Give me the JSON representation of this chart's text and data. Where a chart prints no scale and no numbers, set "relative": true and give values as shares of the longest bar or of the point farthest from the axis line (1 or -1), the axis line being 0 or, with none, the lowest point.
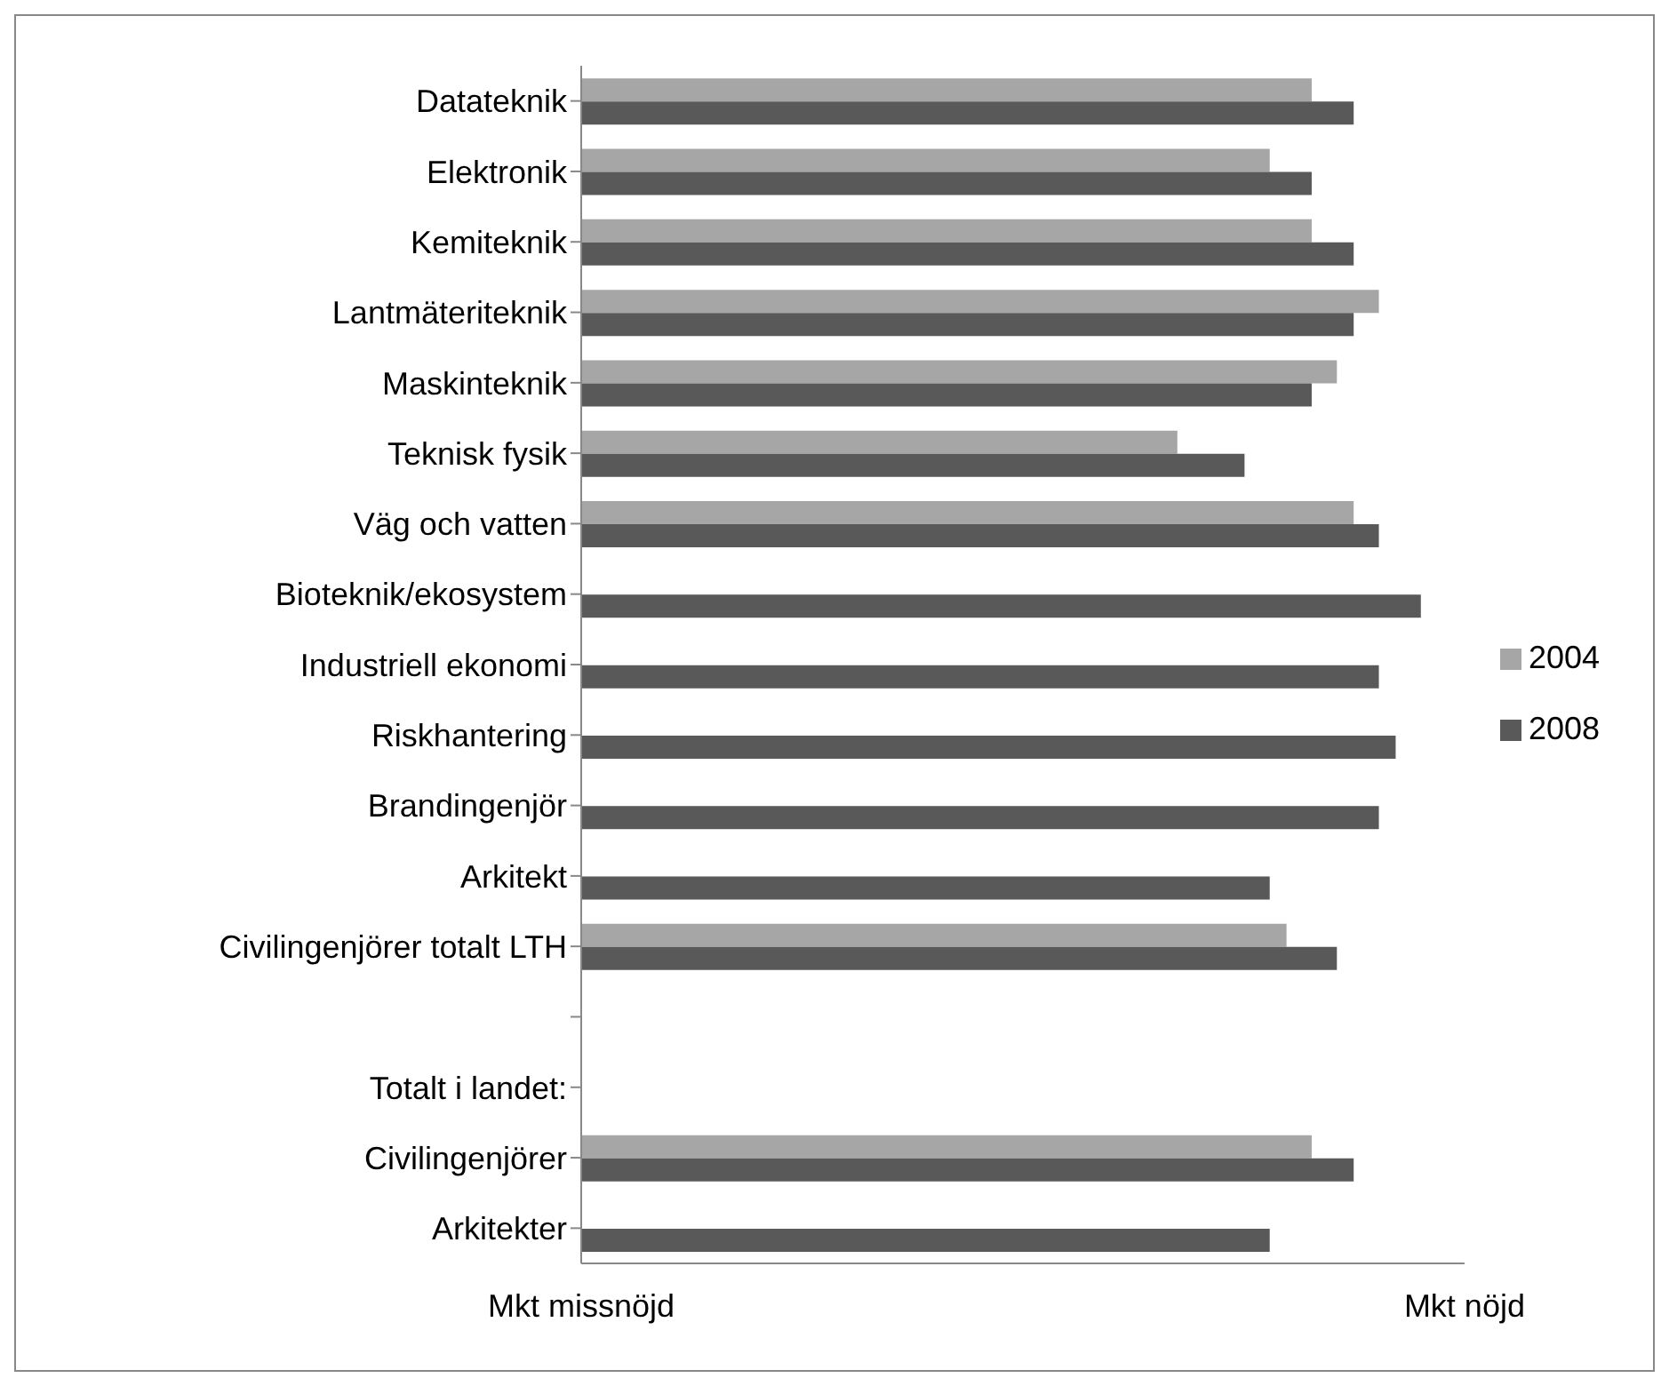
{
  "chart_data": {
    "type": "bar",
    "orientation": "horizontal",
    "relative": true,
    "categories": [
      "Datateknik",
      "Elektronik",
      "Kemiteknik",
      "Lantmäteriteknik",
      "Maskinteknik",
      "Teknisk fysik",
      "Väg och vatten",
      "Bioteknik/ekosystem",
      "Industriell ekonomi",
      "Riskhantering",
      "Brandingenjör",
      "Arkitekt",
      "Civilingenjörer totalt LTH",
      null,
      null,
      "Civilingenjörer",
      "Arkitekter"
    ],
    "series": [
      {
        "name": "2004",
        "color": "#a6a6a6",
        "values": [
          0.87,
          0.82,
          0.87,
          0.95,
          0.9,
          0.71,
          0.92,
          null,
          null,
          null,
          null,
          null,
          0.84,
          null,
          null,
          0.87,
          null
        ]
      },
      {
        "name": "2008",
        "color": "#595959",
        "values": [
          0.92,
          0.87,
          0.92,
          0.92,
          0.87,
          0.79,
          0.95,
          1,
          0.95,
          0.97,
          0.95,
          0.82,
          0.9,
          null,
          null,
          0.92,
          0.82
        ]
      }
    ],
    "annotations": [
      "Mkt missnöjd",
      "Mkt nöjd",
      "Totalt i landet:"
    ],
    "legend": "right"
  }
}
